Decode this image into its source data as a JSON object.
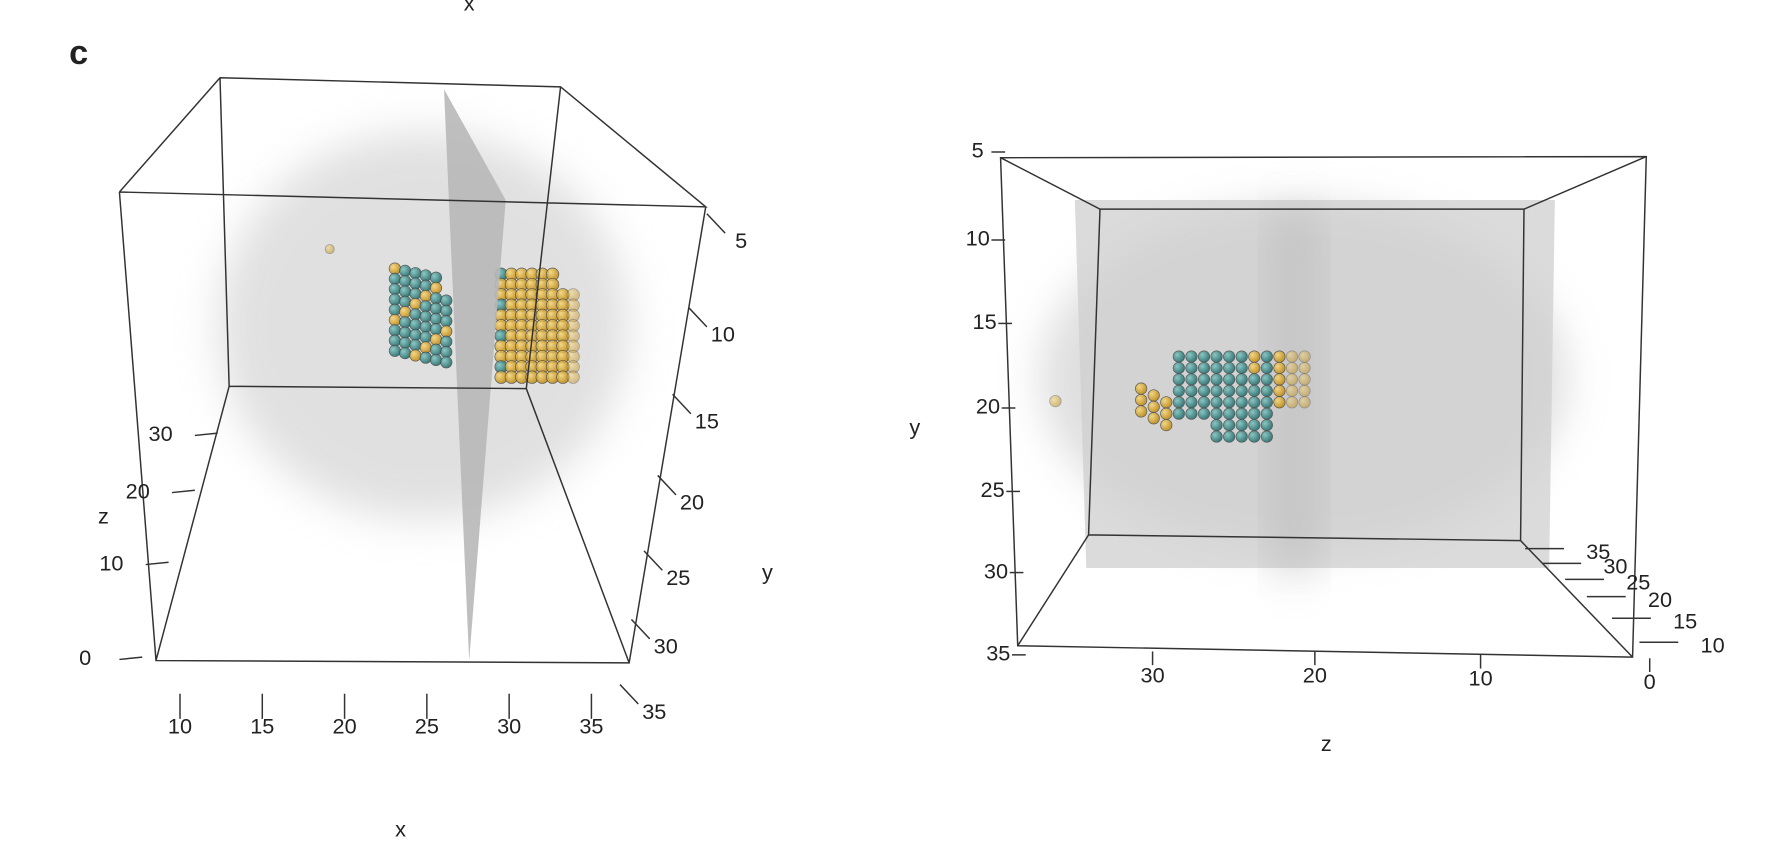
{
  "panel_label": "c",
  "top_axis_label": "x",
  "left_plot": {
    "x_label": "x",
    "y_label": "y",
    "z_label": "z",
    "x_ticks": [
      10,
      15,
      20,
      25,
      30,
      35
    ],
    "y_ticks": [
      5,
      10,
      15,
      20,
      25,
      30,
      35
    ],
    "z_ticks": [
      0,
      10,
      20,
      30
    ]
  },
  "right_plot": {
    "z_label": "z",
    "y_label": "y",
    "y_ticks": [
      5,
      10,
      15,
      20,
      25,
      30,
      35
    ],
    "z_ticks": [
      30,
      20,
      10,
      0
    ],
    "x_ticks": [
      35,
      30,
      25,
      20,
      15,
      10
    ]
  }
}
